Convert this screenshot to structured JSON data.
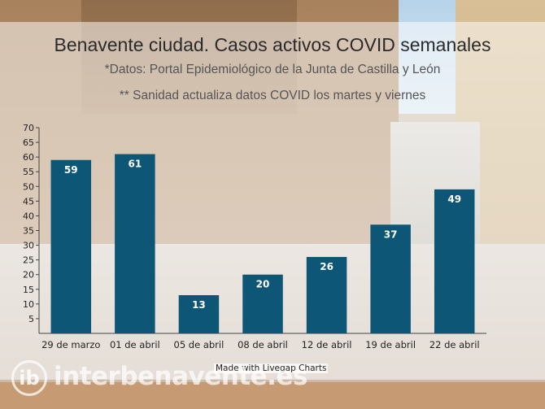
{
  "watermark": {
    "logo_text": "ib",
    "text": "interbenavente.es"
  },
  "credit": "Made with Livegap Charts",
  "colors": {
    "bar": "#0e5676",
    "value_label": "#ffffff",
    "axis": "#444444"
  },
  "chart_data": {
    "type": "bar",
    "title": "Benavente ciudad. Casos activos COVID semanales",
    "subtitle": "*Datos: Portal Epidemiológico de la Junta de Castilla y León",
    "subtitle2": "** Sanidad actualiza datos COVID los martes y viernes",
    "categories": [
      "29 de marzo",
      "01 de abril",
      "05 de abril",
      "08 de abril",
      "12 de abril",
      "19 de abril",
      "22 de abril"
    ],
    "values": [
      59,
      61,
      13,
      20,
      26,
      37,
      49
    ],
    "ylim": [
      0,
      70
    ],
    "yticks": [
      5,
      10,
      15,
      20,
      25,
      30,
      35,
      40,
      45,
      50,
      55,
      60,
      65,
      70
    ],
    "xlabel": "",
    "ylabel": "",
    "grid": false
  }
}
